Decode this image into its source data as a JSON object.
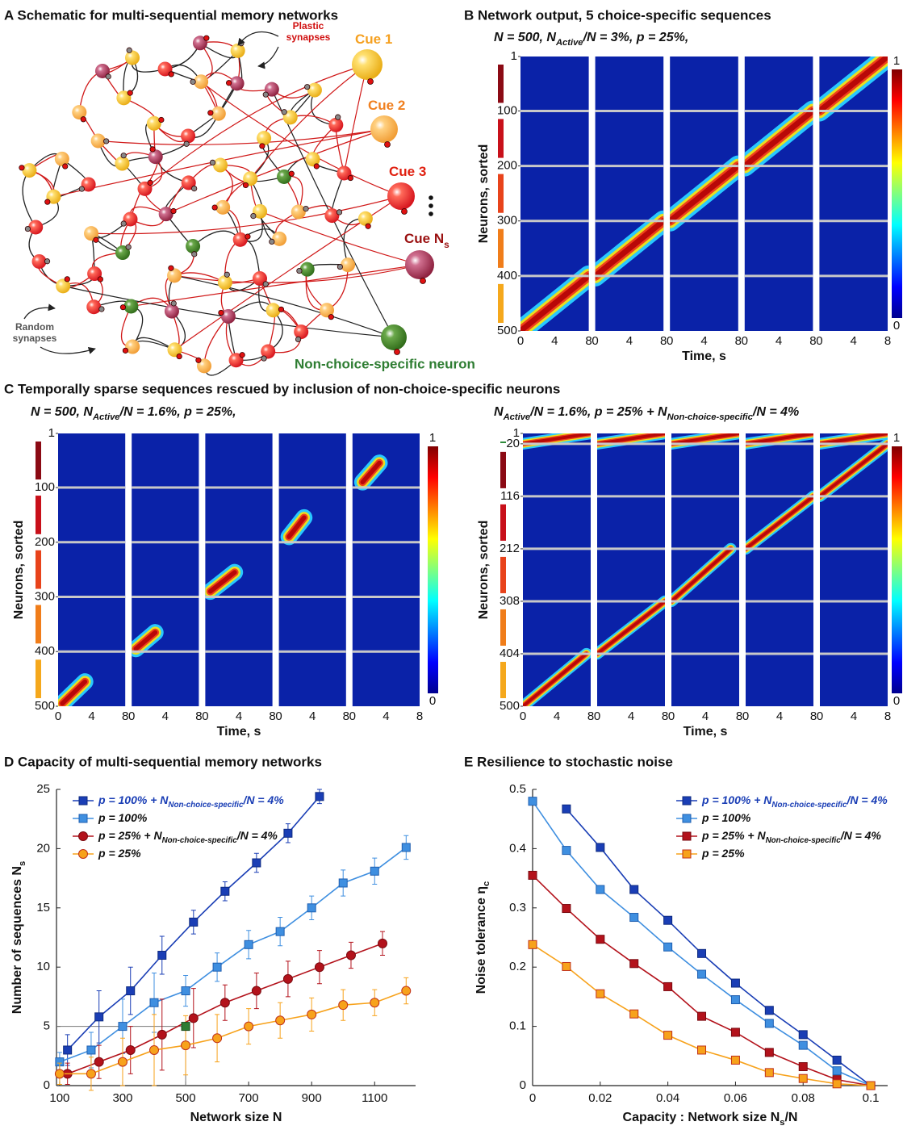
{
  "schematic": {
    "title": "A Schematic for multi-sequential memory networks",
    "plastic_label": [
      "Plastic",
      "synapses"
    ],
    "random_label": [
      "Random",
      "synapses"
    ],
    "cues": [
      [
        "Cue 1"
      ],
      [
        "Cue 2"
      ],
      [
        "Cue 3"
      ],
      [
        "Cue N",
        "s"
      ]
    ],
    "non_choice_label": "Non-choice-specific neuron"
  },
  "panel_c_title": "C Temporally sparse sequences rescued by inclusion of non-choice-specific neurons",
  "chart_data": [
    {
      "type": "heatmap",
      "title": "B Network output, 5 choice-specific sequences",
      "subtitle": [
        "N = 500, N",
        "Active",
        "/N = 3%, p = 25%,"
      ],
      "ylabel": "Neurons, sorted",
      "xlabel": "Time, s",
      "xlim": [
        0,
        8
      ],
      "xticks": [
        0,
        4,
        8
      ],
      "ylim": [
        500,
        1
      ],
      "yticks": [
        1,
        100,
        200,
        300,
        400,
        500
      ],
      "clim": [
        0,
        1
      ],
      "cticks": [
        0,
        1
      ],
      "group_colors": [
        "#8b0a14",
        "#c8101a",
        "#e8431b",
        "#f07d1a",
        "#f5a81c"
      ],
      "panels": [
        {
          "sequences": [
            {
              "rows": [
                400,
                500
              ],
              "t": [
                0,
                8
              ]
            }
          ]
        },
        {
          "sequences": [
            {
              "rows": [
                300,
                400
              ],
              "t": [
                0,
                8
              ]
            }
          ]
        },
        {
          "sequences": [
            {
              "rows": [
                200,
                300
              ],
              "t": [
                0,
                8
              ]
            }
          ]
        },
        {
          "sequences": [
            {
              "rows": [
                100,
                200
              ],
              "t": [
                0,
                8
              ]
            }
          ]
        },
        {
          "sequences": [
            {
              "rows": [
                1,
                100
              ],
              "t": [
                0,
                8
              ]
            }
          ]
        }
      ]
    },
    {
      "type": "heatmap",
      "subtitle": [
        "N = 500, N",
        "Active",
        "/N = 1.6%, p = 25%,"
      ],
      "ylabel": "Neurons, sorted",
      "xlabel": "Time, s",
      "xlim": [
        0,
        8
      ],
      "xticks": [
        0,
        4,
        8
      ],
      "ylim": [
        500,
        1
      ],
      "yticks": [
        1,
        100,
        200,
        300,
        400,
        500
      ],
      "clim": [
        0,
        1
      ],
      "cticks": [
        0,
        1
      ],
      "group_colors": [
        "#8b0a14",
        "#c8101a",
        "#e8431b",
        "#f07d1a",
        "#f5a81c"
      ],
      "panels": [
        {
          "sequences": [
            {
              "rows": [
                455,
                495
              ],
              "t": [
                0.5,
                3.2
              ]
            }
          ]
        },
        {
          "sequences": [
            {
              "rows": [
                365,
                395
              ],
              "t": [
                0.5,
                2.8
              ]
            }
          ]
        },
        {
          "sequences": [
            {
              "rows": [
                255,
                290
              ],
              "t": [
                0.6,
                3.5
              ]
            }
          ]
        },
        {
          "sequences": [
            {
              "rows": [
                155,
                190
              ],
              "t": [
                1.2,
                3
              ]
            }
          ]
        },
        {
          "sequences": [
            {
              "rows": [
                55,
                90
              ],
              "t": [
                1.2,
                3.2
              ]
            }
          ]
        }
      ]
    },
    {
      "type": "heatmap",
      "subtitle": [
        "N",
        "Active",
        "/N = 1.6%, p = 25% + N",
        "Non-choice-specific",
        "/N = 4%"
      ],
      "ylabel": "Neurons, sorted",
      "xlabel": "Time, s",
      "xlim": [
        0,
        8
      ],
      "xticks": [
        0,
        4,
        8
      ],
      "ylim": [
        500,
        1
      ],
      "yticks": [
        1,
        20,
        116,
        212,
        308,
        404,
        500
      ],
      "clim": [
        0,
        1
      ],
      "cticks": [
        0,
        1
      ],
      "group_colors": [
        "#2e8b3a",
        "#8b0a14",
        "#c8101a",
        "#e8431b",
        "#f07d1a",
        "#f5a81c"
      ],
      "panels": [
        {
          "sequences": [
            {
              "rows": [
                1,
                20
              ],
              "t": [
                0,
                8
              ]
            },
            {
              "rows": [
                404,
                500
              ],
              "t": [
                0,
                7.5
              ]
            }
          ]
        },
        {
          "sequences": [
            {
              "rows": [
                1,
                20
              ],
              "t": [
                0,
                8
              ]
            },
            {
              "rows": [
                308,
                404
              ],
              "t": [
                0,
                8
              ]
            }
          ]
        },
        {
          "sequences": [
            {
              "rows": [
                1,
                20
              ],
              "t": [
                0,
                8
              ]
            },
            {
              "rows": [
                212,
                308
              ],
              "t": [
                0,
                7
              ]
            }
          ]
        },
        {
          "sequences": [
            {
              "rows": [
                1,
                20
              ],
              "t": [
                0,
                8
              ]
            },
            {
              "rows": [
                116,
                212
              ],
              "t": [
                0,
                8
              ]
            }
          ]
        },
        {
          "sequences": [
            {
              "rows": [
                1,
                20
              ],
              "t": [
                0,
                8
              ]
            },
            {
              "rows": [
                20,
                116
              ],
              "t": [
                0,
                8
              ]
            }
          ]
        }
      ]
    },
    {
      "type": "line",
      "title": "D Capacity of multi-sequential memory networks",
      "xlabel": "Network size N",
      "ylabel": [
        "Number of sequences N",
        "s"
      ],
      "xlim": [
        90,
        1230
      ],
      "xticks": [
        100,
        300,
        500,
        700,
        900,
        1100
      ],
      "ylim": [
        0,
        25
      ],
      "yticks": [
        0,
        5,
        10,
        15,
        20,
        25
      ],
      "legend": "upper left",
      "highlight": {
        "x": 500,
        "y": 5,
        "color": "#2e7d32"
      },
      "series": [
        {
          "name": [
            "p = 100% + N",
            "Non-choice-specific",
            "/N = 4%"
          ],
          "color": "#1a3eb5",
          "edgecolor": "#0e2a80",
          "marker": "square",
          "x": [
            125,
            225,
            325,
            425,
            525,
            625,
            725,
            825,
            925
          ],
          "values": [
            3,
            5.8,
            8,
            11,
            13.8,
            16.4,
            18.8,
            21.3,
            24.4
          ],
          "errors": [
            1.3,
            2.2,
            2,
            1.6,
            1,
            0.8,
            0.8,
            0.8,
            0.6
          ]
        },
        {
          "name": [
            "p = 100%"
          ],
          "color": "#3f8fe0",
          "edgecolor": "#1f5fb0",
          "marker": "square",
          "x": [
            100,
            200,
            300,
            400,
            500,
            600,
            700,
            800,
            900,
            1000,
            1100,
            1200
          ],
          "values": [
            2,
            3,
            5,
            7,
            8,
            10,
            11.9,
            13,
            15,
            17.1,
            18.1,
            20.1
          ],
          "errors": [
            0.8,
            1.5,
            2.3,
            2.5,
            1.3,
            1.2,
            1.2,
            1.2,
            1,
            1.1,
            1.1,
            1
          ]
        },
        {
          "name": [
            "p = 25% + N",
            "Non-choice-specific",
            "/N = 4%"
          ],
          "color": "#b3121b",
          "edgecolor": "#7a0a10",
          "marker": "circle",
          "x": [
            125,
            225,
            325,
            425,
            525,
            625,
            725,
            825,
            925,
            1025,
            1125
          ],
          "values": [
            1,
            2,
            3,
            4.3,
            5.7,
            7,
            8,
            9,
            10,
            11,
            12
          ],
          "errors": [
            0.9,
            1.4,
            2,
            3,
            2.5,
            1.5,
            1.5,
            1.5,
            1.4,
            1.1,
            1
          ]
        },
        {
          "name": [
            "p = 25%"
          ],
          "color": "#f7a21b",
          "edgecolor": "#c0301a",
          "marker": "circle",
          "x": [
            100,
            200,
            300,
            400,
            500,
            600,
            700,
            800,
            900,
            1000,
            1100,
            1200
          ],
          "values": [
            1,
            1,
            2,
            3,
            3.4,
            4,
            5,
            5.5,
            6,
            6.8,
            7,
            8
          ],
          "errors": [
            0.9,
            1.4,
            2,
            3,
            2.5,
            2,
            1.5,
            1.5,
            1.4,
            1.3,
            1.1,
            1.1
          ]
        }
      ]
    },
    {
      "type": "line",
      "title": "E Resilience to stochastic noise",
      "xlabel": [
        "Capacity : Network size N",
        "s",
        "/N"
      ],
      "ylabel": [
        "Noise tolerance η",
        "c"
      ],
      "xlim": [
        0,
        0.105
      ],
      "xticks": [
        0,
        0.02,
        0.04,
        0.06,
        0.08,
        0.1
      ],
      "ylim": [
        0,
        0.5
      ],
      "yticks": [
        0,
        0.1,
        0.2,
        0.3,
        0.4,
        0.5
      ],
      "legend": "upper right",
      "series": [
        {
          "name": [
            "p = 100% + N",
            "Non-choice-specific",
            "/N = 4%"
          ],
          "color": "#1a3eb5",
          "edgecolor": "#0e2a80",
          "marker": "square",
          "x": [
            0.01,
            0.02,
            0.03,
            0.04,
            0.05,
            0.06,
            0.07,
            0.08,
            0.09,
            0.1
          ],
          "values": [
            0.467,
            0.402,
            0.331,
            0.279,
            0.223,
            0.173,
            0.127,
            0.086,
            0.043,
            0
          ]
        },
        {
          "name": [
            "p = 100%"
          ],
          "color": "#3f8fe0",
          "edgecolor": "#1f5fb0",
          "marker": "square",
          "x": [
            0,
            0.01,
            0.02,
            0.03,
            0.04,
            0.05,
            0.06,
            0.07,
            0.08,
            0.09,
            0.1
          ],
          "values": [
            0.48,
            0.397,
            0.331,
            0.284,
            0.234,
            0.188,
            0.145,
            0.105,
            0.068,
            0.025,
            0
          ]
        },
        {
          "name": [
            "p = 25% + N",
            "Non-choice-specific",
            "/N = 4%"
          ],
          "color": "#b3121b",
          "edgecolor": "#7a0a10",
          "marker": "square",
          "x": [
            0,
            0.01,
            0.02,
            0.03,
            0.04,
            0.05,
            0.06,
            0.07,
            0.08,
            0.09,
            0.1
          ],
          "values": [
            0.355,
            0.299,
            0.247,
            0.206,
            0.167,
            0.117,
            0.09,
            0.056,
            0.032,
            0.01,
            0
          ]
        },
        {
          "name": [
            "p = 25%"
          ],
          "color": "#f7a21b",
          "edgecolor": "#c0301a",
          "marker": "square",
          "x": [
            0,
            0.01,
            0.02,
            0.03,
            0.04,
            0.05,
            0.06,
            0.07,
            0.08,
            0.09,
            0.1
          ],
          "values": [
            0.238,
            0.201,
            0.155,
            0.121,
            0.085,
            0.06,
            0.043,
            0.022,
            0.012,
            0.003,
            0
          ]
        }
      ]
    }
  ]
}
